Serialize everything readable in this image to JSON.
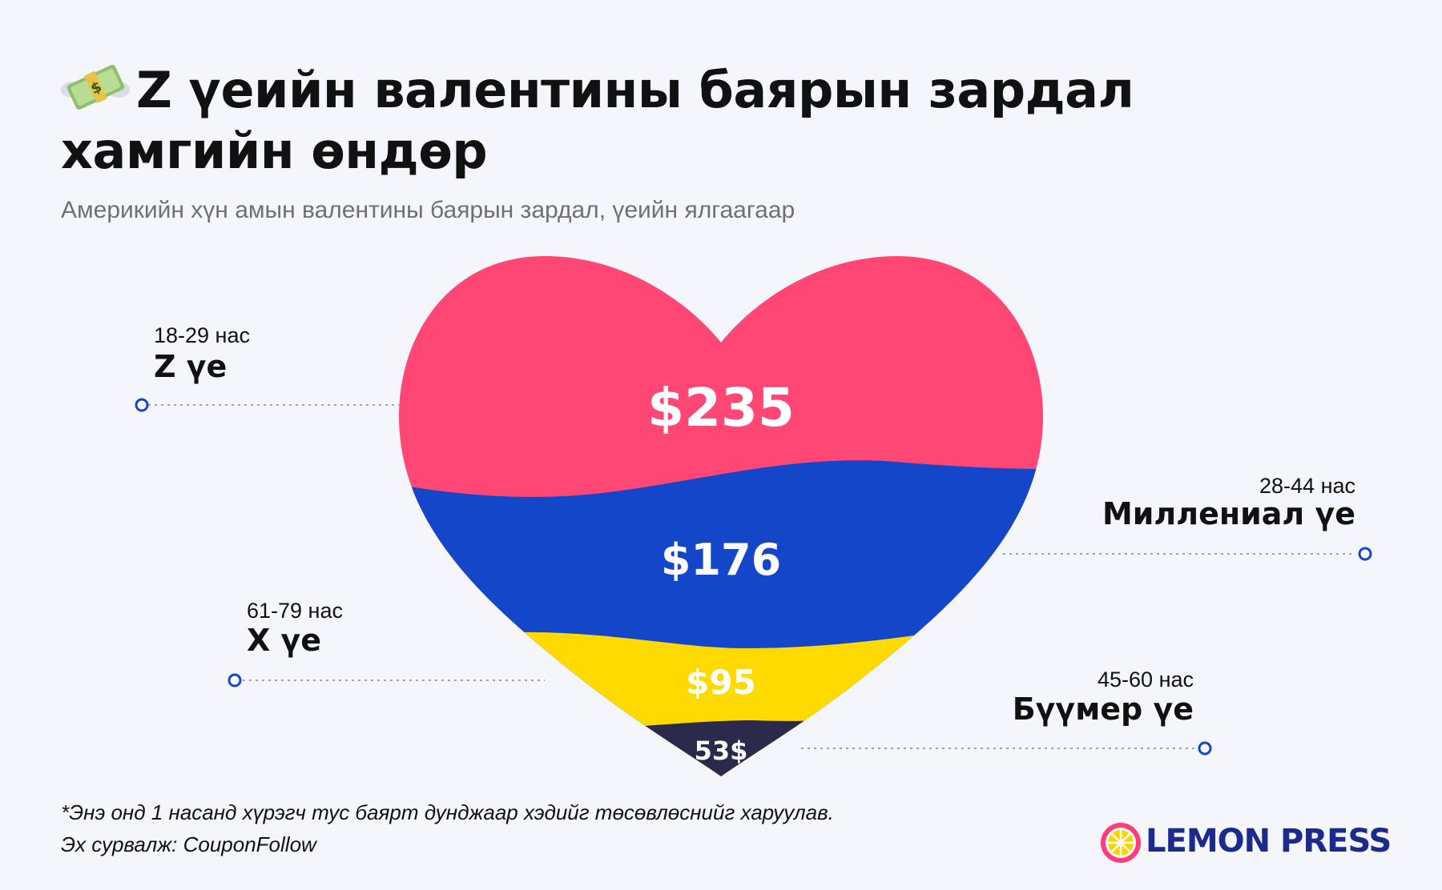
{
  "title": "Z үеийн валентины баярын зардал хамгийн өндөр",
  "subtitle": "Америкийн хүн амын валентины баярын зардал, үеийн ялгаагаар",
  "icons": {
    "title_icon": "money-with-wings-icon",
    "logo_icon": "lemon-slice-icon"
  },
  "chart_data": {
    "type": "bar",
    "categories": [
      "Z үе",
      "Миллениал үе",
      "X үе",
      "Бүүмер үе"
    ],
    "ages": [
      "18-29 нас",
      "28-44 нас",
      "61-79 нас",
      "45-60 нас"
    ],
    "values": [
      235,
      176,
      95,
      53
    ],
    "value_labels": [
      "$235",
      "$176",
      "$95",
      "53$"
    ],
    "colors": [
      "#ff4775",
      "#1446c9",
      "#ffda00",
      "#2b2a4b"
    ],
    "unit": "$"
  },
  "footnote": "*Энэ онд 1 насанд хүрэгч тус баярт дунджаар хэдийг төсөвлөснийг харуулав.",
  "source": "Эх сурвалж: CouponFollow",
  "brand": {
    "name": "LEMON PRESS",
    "color": "#1b2a8c"
  }
}
